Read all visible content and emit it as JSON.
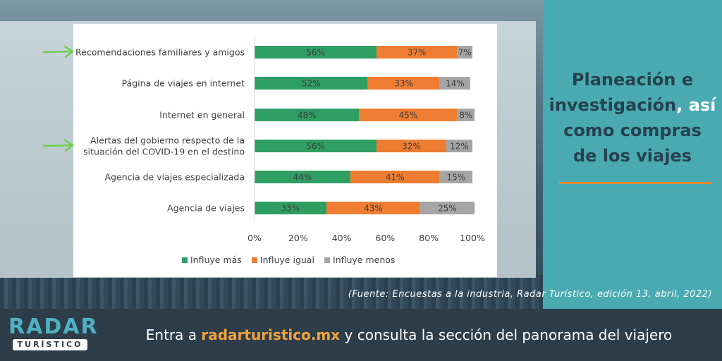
{
  "heading": {
    "line1": "Planeación e",
    "line2_main": "investigación",
    "line2_accent": ", así",
    "line3": "como compras",
    "line4": "de los viajes"
  },
  "source": "(Fuente: Encuestas a la industria, Radar Turístico, edición 13, abril, 2022)",
  "logo": {
    "top": "RADAR",
    "bottom": "TURÍSTICO"
  },
  "cta": {
    "prefix": "Entra a ",
    "url": "radarturistico.mx",
    "suffix": " y consulta la sección del panorama del viajero"
  },
  "colors": {
    "influye_mas": "#2e9e63",
    "influye_igual": "#ee7d31",
    "influye_menos": "#a5a5a5",
    "panel": "#49aab2",
    "arrow": "#6fcf50"
  },
  "chart_data": {
    "type": "bar",
    "orientation": "horizontal",
    "stacked": true,
    "categories": [
      [
        "Recomendaciones familiares y amigos"
      ],
      [
        "Página de viajes en internet"
      ],
      [
        "Internet en general"
      ],
      [
        "Alertas del gobierno respecto de la",
        "situación del COVID-19 en el destino"
      ],
      [
        "Agencia de viajes especializada"
      ],
      [
        "Agencia de viajes"
      ]
    ],
    "highlighted": [
      true,
      false,
      false,
      true,
      false,
      false
    ],
    "series": [
      {
        "name": "Influye más",
        "values": [
          56,
          52,
          48,
          56,
          44,
          33
        ],
        "labels": [
          "56%",
          "52%",
          "48%",
          "56%",
          "44%",
          "33%"
        ]
      },
      {
        "name": "Influye igual",
        "values": [
          37,
          33,
          45,
          32,
          41,
          43
        ],
        "labels": [
          "37%",
          "33%",
          "45%",
          "32%",
          "41%",
          "43%"
        ]
      },
      {
        "name": "Influye menos",
        "values": [
          7,
          14,
          8,
          12,
          15,
          25
        ],
        "labels": [
          "7%",
          "14%",
          "8%",
          "12%",
          "15%",
          "25%"
        ]
      }
    ],
    "xlim": [
      0,
      100
    ],
    "xticks": [
      "0%",
      "20%",
      "40%",
      "60%",
      "80%",
      "100%"
    ],
    "legend_position": "bottom",
    "grid": false
  }
}
